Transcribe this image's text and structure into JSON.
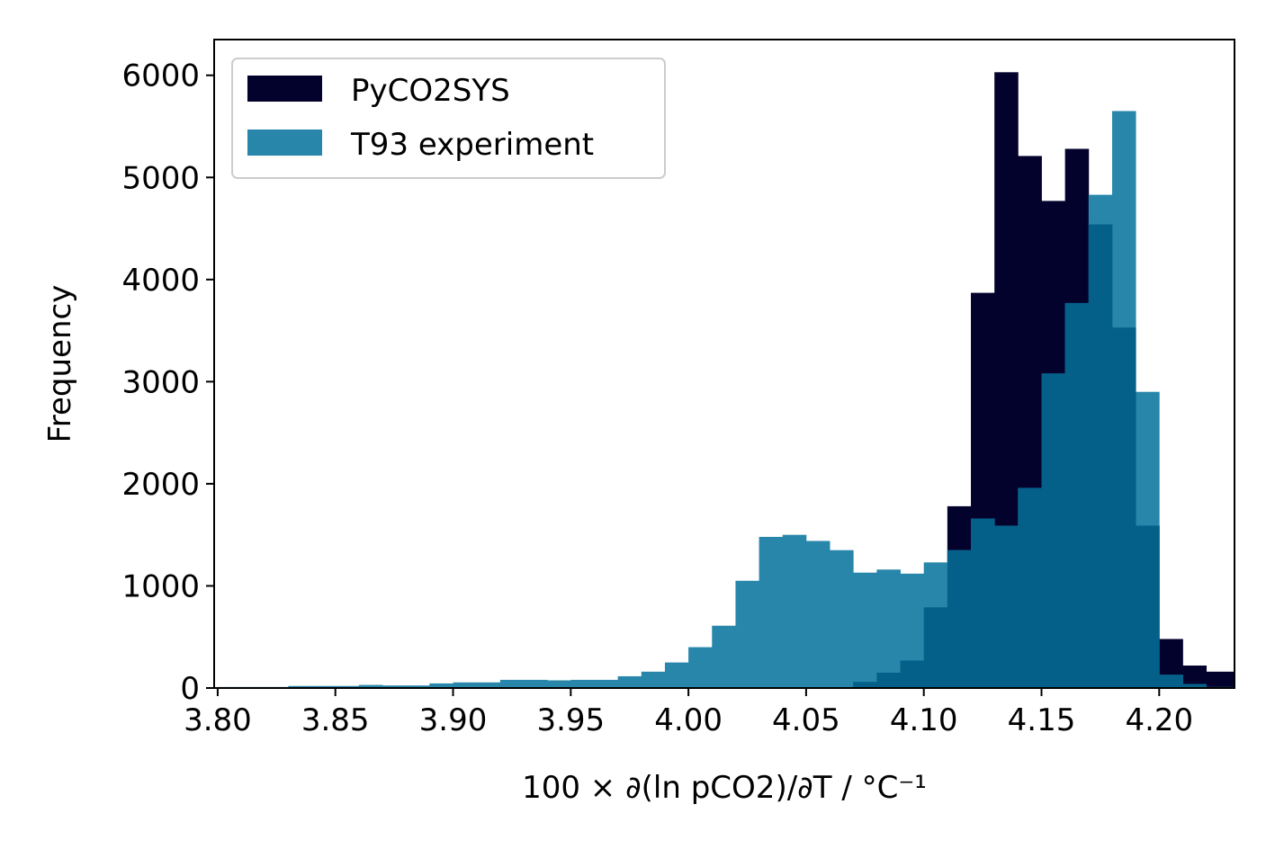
{
  "chart_data": {
    "type": "bar",
    "title": "",
    "xlabel": "100 × ∂(ln pCO2)/∂T / °C⁻¹",
    "ylabel": "Frequency",
    "xlim": [
      3.7985,
      4.232
    ],
    "ylim": [
      0,
      6350
    ],
    "xticks": [
      "3.80",
      "3.85",
      "3.90",
      "3.95",
      "4.00",
      "4.05",
      "4.10",
      "4.15",
      "4.20"
    ],
    "yticks": [
      "0",
      "1000",
      "2000",
      "3000",
      "4000",
      "5000",
      "6000"
    ],
    "grid": false,
    "legend_position": "top-left",
    "series": [
      {
        "name": "PyCO2SYS",
        "color": "#03022d",
        "bins": [
          [
            4.07,
            4.08,
            60
          ],
          [
            4.08,
            4.09,
            150
          ],
          [
            4.09,
            4.1,
            270
          ],
          [
            4.1,
            4.11,
            790
          ],
          [
            4.11,
            4.12,
            1780
          ],
          [
            4.12,
            4.13,
            3870
          ],
          [
            4.13,
            4.14,
            6030
          ],
          [
            4.14,
            4.15,
            5210
          ],
          [
            4.15,
            4.16,
            4770
          ],
          [
            4.16,
            4.17,
            5280
          ],
          [
            4.17,
            4.18,
            4540
          ],
          [
            4.18,
            4.19,
            3530
          ],
          [
            4.19,
            4.2,
            1590
          ],
          [
            4.2,
            4.21,
            480
          ],
          [
            4.21,
            4.22,
            220
          ],
          [
            4.22,
            4.232,
            160
          ]
        ]
      },
      {
        "name": "T93 experiment",
        "color": "#2786aa",
        "bins": [
          [
            3.8,
            3.83,
            10
          ],
          [
            3.83,
            3.84,
            20
          ],
          [
            3.84,
            3.86,
            20
          ],
          [
            3.86,
            3.87,
            30
          ],
          [
            3.87,
            3.89,
            25
          ],
          [
            3.89,
            3.9,
            45
          ],
          [
            3.9,
            3.92,
            55
          ],
          [
            3.92,
            3.94,
            80
          ],
          [
            3.94,
            3.95,
            75
          ],
          [
            3.95,
            3.97,
            80
          ],
          [
            3.97,
            3.98,
            115
          ],
          [
            3.98,
            3.99,
            160
          ],
          [
            3.99,
            4.0,
            250
          ],
          [
            4.0,
            4.01,
            400
          ],
          [
            4.01,
            4.02,
            610
          ],
          [
            4.02,
            4.03,
            1050
          ],
          [
            4.03,
            4.04,
            1480
          ],
          [
            4.04,
            4.05,
            1500
          ],
          [
            4.05,
            4.06,
            1440
          ],
          [
            4.06,
            4.07,
            1350
          ],
          [
            4.07,
            4.08,
            1130
          ],
          [
            4.08,
            4.09,
            1160
          ],
          [
            4.09,
            4.1,
            1120
          ],
          [
            4.1,
            4.11,
            1230
          ],
          [
            4.11,
            4.12,
            1350
          ],
          [
            4.12,
            4.13,
            1660
          ],
          [
            4.13,
            4.14,
            1590
          ],
          [
            4.14,
            4.15,
            1960
          ],
          [
            4.15,
            4.16,
            3080
          ],
          [
            4.16,
            4.17,
            3770
          ],
          [
            4.17,
            4.18,
            4830
          ],
          [
            4.18,
            4.19,
            5650
          ],
          [
            4.19,
            4.2,
            2900
          ],
          [
            4.2,
            4.21,
            130
          ],
          [
            4.21,
            4.22,
            40
          ],
          [
            4.22,
            4.232,
            10
          ]
        ]
      }
    ],
    "overlap_color": "#056089"
  }
}
